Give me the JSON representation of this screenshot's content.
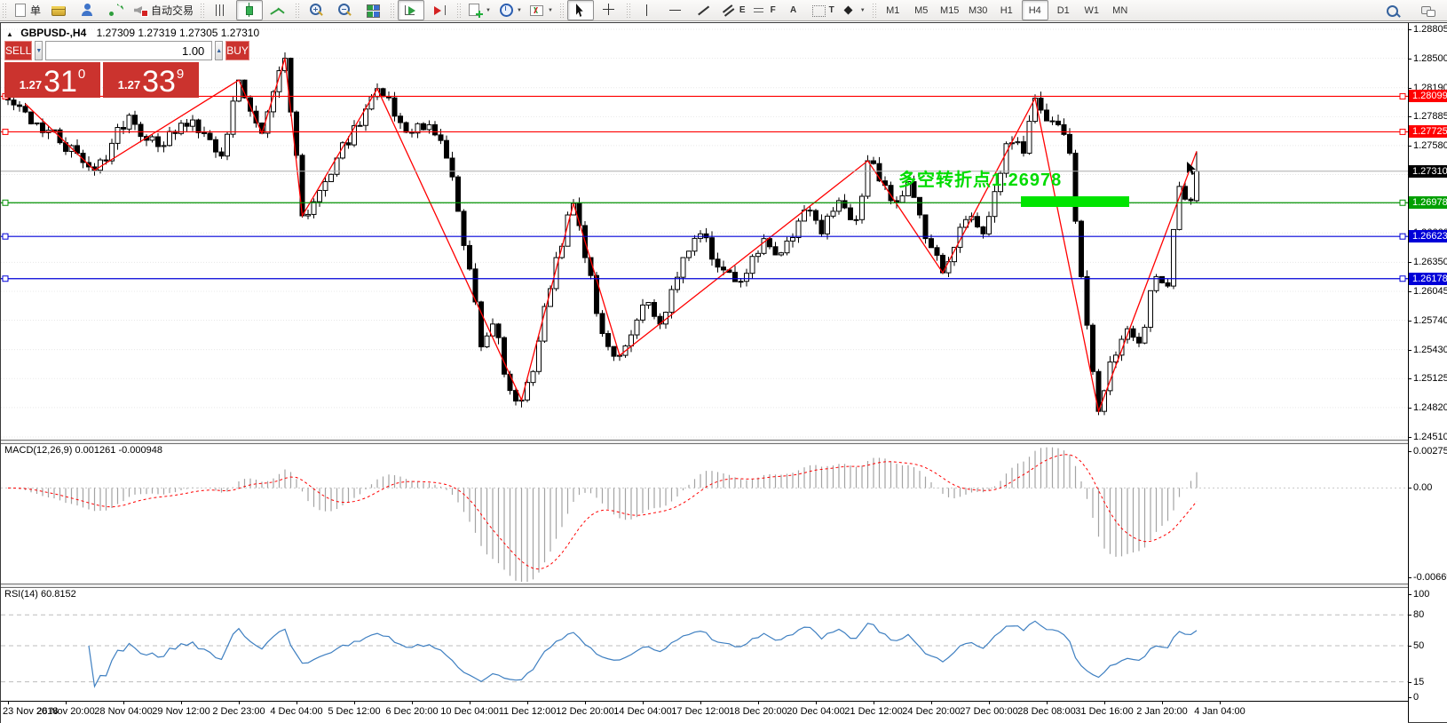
{
  "toolbar": {
    "caret_glyph": "▼",
    "groups": [
      {
        "buttons": [
          {
            "name": "new-order",
            "icon": "new-order",
            "label": "单"
          },
          {
            "name": "accounts-wallet",
            "icon": "wallet"
          },
          {
            "name": "profile",
            "icon": "profile"
          },
          {
            "name": "signals",
            "icon": "signals"
          },
          {
            "name": "autotrading",
            "icon": "autotrade",
            "label": "自动交易"
          }
        ]
      },
      {
        "buttons": [
          {
            "name": "bar-chart-mode",
            "icon": "bars"
          },
          {
            "name": "candlestick-mode",
            "icon": "candle",
            "pressed": true
          },
          {
            "name": "line-chart-mode",
            "icon": "linechart"
          }
        ]
      },
      {
        "buttons": [
          {
            "name": "zoom-in",
            "icon": "zoom-in"
          },
          {
            "name": "zoom-out",
            "icon": "zoom-out"
          },
          {
            "name": "tile-windows",
            "icon": "tile"
          }
        ]
      },
      {
        "buttons": [
          {
            "name": "auto-scroll",
            "icon": "autoscroll",
            "pressed": true
          },
          {
            "name": "chart-shift",
            "icon": "shift"
          }
        ]
      },
      {
        "buttons": [
          {
            "name": "new-chart",
            "icon": "newchart",
            "caret": true
          },
          {
            "name": "chart-periods",
            "icon": "clock",
            "caret": true
          },
          {
            "name": "indicators-list",
            "icon": "indicators",
            "caret": true
          }
        ]
      },
      {
        "buttons": [
          {
            "name": "cursor-tool",
            "icon": "cursor",
            "pressed": true
          },
          {
            "name": "crosshair-tool",
            "icon": "crosshair"
          }
        ]
      },
      {
        "buttons": [
          {
            "name": "vertical-line-tool",
            "icon": "vline"
          },
          {
            "name": "horizontal-line-tool",
            "icon": "hline"
          },
          {
            "name": "trendline-tool",
            "icon": "trend"
          },
          {
            "name": "equidistant-channel-tool",
            "icon": "channel",
            "glyph": "E"
          },
          {
            "name": "fibonacci-tool",
            "icon": "fibo",
            "glyph": "F"
          },
          {
            "name": "text-tool",
            "icon": "",
            "glyph": "A"
          },
          {
            "name": "text-label-tool",
            "icon": "label",
            "glyph": "T"
          },
          {
            "name": "arrows-tool",
            "icon": "arrows",
            "caret": true
          }
        ]
      },
      {
        "timeframes": true,
        "buttons": [
          {
            "name": "tf-m1",
            "label": "M1"
          },
          {
            "name": "tf-m5",
            "label": "M5"
          },
          {
            "name": "tf-m15",
            "label": "M15"
          },
          {
            "name": "tf-m30",
            "label": "M30"
          },
          {
            "name": "tf-h1",
            "label": "H1"
          },
          {
            "name": "tf-h4",
            "label": "H4",
            "pressed": true
          },
          {
            "name": "tf-d1",
            "label": "D1"
          },
          {
            "name": "tf-w1",
            "label": "W1"
          },
          {
            "name": "tf-mn",
            "label": "MN"
          }
        ]
      }
    ],
    "right_buttons": [
      {
        "name": "search",
        "icon": "search"
      },
      {
        "name": "chat",
        "icon": "chat"
      }
    ]
  },
  "chart": {
    "collapse_glyph": "▲",
    "symbol_title": "GBPUSD-,H4",
    "quotes": "1.27309 1.27319 1.27305 1.27310"
  },
  "trade_panel": {
    "sell_label": "SELL",
    "buy_label": "BUY",
    "volume": "1.00",
    "spin_down_glyph": "▼",
    "spin_up_glyph": "▲",
    "sell_price_small": "1.27",
    "sell_price_big": "31",
    "sell_price_sup": "0",
    "buy_price_small": "1.27",
    "buy_price_big": "33",
    "buy_price_sup": "9",
    "panel_color": "#cb332e"
  },
  "annotation": {
    "text": "多空转折点1.26978",
    "color": "#00DC00",
    "rect_color": "#00E400"
  },
  "indicators": {
    "macd": {
      "label": "MACD(12,26,9)",
      "value": "0.001261",
      "signal_value": "-0.000948",
      "axis": [
        {
          "label": "0.002753",
          "v": 0.002753
        },
        {
          "label": "0.00",
          "v": 0
        },
        {
          "label": "-0.006699",
          "v": -0.006699
        }
      ],
      "histogram_color": "#A3A3A3",
      "signal_color": "#FF0000"
    },
    "rsi": {
      "label": "RSI(14)",
      "value": "60.8152",
      "axis": [
        {
          "label": "100",
          "v": 100
        },
        {
          "label": "80",
          "v": 80,
          "dashed": true
        },
        {
          "label": "50",
          "v": 50,
          "dashed": true
        },
        {
          "label": "15",
          "v": 15,
          "dashed": true
        },
        {
          "label": "0",
          "v": 0
        }
      ],
      "line_color": "#3E7FC1"
    }
  },
  "chart_data": {
    "type": "candlestick",
    "symbol": "GBPUSD-",
    "timeframe": "H4",
    "current_price": {
      "value": 1.2731,
      "label": "1.27310",
      "badge_color": "#000000",
      "line_color": "#ADADAD"
    },
    "price_axis": {
      "ticks": [
        "1.28805",
        "1.28500",
        "1.28190",
        "1.27885",
        "1.27580",
        "1.27275",
        "1.26970",
        "1.26660",
        "1.26350",
        "1.26045",
        "1.25740",
        "1.25430",
        "1.25125",
        "1.24820",
        "1.24510"
      ],
      "top": 1.28805,
      "bottom": 1.2451
    },
    "time_axis": {
      "labels": [
        "23 Nov 2018",
        "26 Nov 20:00",
        "28 Nov 04:00",
        "29 Nov 12:00",
        "2 Dec 23:00",
        "4 Dec 04:00",
        "5 Dec 12:00",
        "6 Dec 20:00",
        "10 Dec 04:00",
        "11 Dec 12:00",
        "12 Dec 20:00",
        "14 Dec 04:00",
        "17 Dec 12:00",
        "18 Dec 20:00",
        "20 Dec 04:00",
        "21 Dec 12:00",
        "24 Dec 20:00",
        "27 Dec 00:00",
        "28 Dec 08:00",
        "31 Dec 16:00",
        "2 Jan 20:00",
        "4 Jan 04:00"
      ]
    },
    "levels": [
      {
        "price": 1.28099,
        "label": "1.28099",
        "color": "#FF0000"
      },
      {
        "price": 1.27725,
        "label": "1.27725",
        "color": "#FF0000"
      },
      {
        "price": 1.26978,
        "label": "1.26978",
        "color": "#009000",
        "badge_color": "#00A000"
      },
      {
        "price": 1.26623,
        "label": "1.26623",
        "color": "#0000D8"
      },
      {
        "price": 1.26178,
        "label": "1.26178",
        "color": "#0000D8"
      }
    ],
    "zigzag_color": "#FF0000",
    "bar_count": 207,
    "price_path": [
      [
        0,
        1.2806
      ],
      [
        15,
        1.2732
      ],
      [
        21,
        1.279
      ],
      [
        26,
        1.2757
      ],
      [
        32,
        1.2785
      ],
      [
        37,
        1.2747
      ],
      [
        40,
        1.2827
      ],
      [
        44,
        1.2771
      ],
      [
        48,
        1.285
      ],
      [
        51,
        1.2684
      ],
      [
        55,
        1.272
      ],
      [
        64,
        1.2818
      ],
      [
        69,
        1.2772
      ],
      [
        73,
        1.278
      ],
      [
        77,
        1.2725
      ],
      [
        80,
        1.2628
      ],
      [
        82,
        1.2546
      ],
      [
        84,
        1.257
      ],
      [
        87,
        1.25
      ],
      [
        89,
        1.249
      ],
      [
        91,
        1.252
      ],
      [
        95,
        1.264
      ],
      [
        98,
        1.2697
      ],
      [
        100,
        1.264
      ],
      [
        103,
        1.256
      ],
      [
        106,
        1.2537
      ],
      [
        110,
        1.259
      ],
      [
        113,
        1.257
      ],
      [
        117,
        1.264
      ],
      [
        120,
        1.2665
      ],
      [
        123,
        1.263
      ],
      [
        127,
        1.2615
      ],
      [
        131,
        1.266
      ],
      [
        134,
        1.2645
      ],
      [
        138,
        1.269
      ],
      [
        141,
        1.2665
      ],
      [
        144,
        1.27
      ],
      [
        147,
        1.268
      ],
      [
        149,
        1.2742
      ],
      [
        153,
        1.27
      ],
      [
        156,
        1.272
      ],
      [
        159,
        1.266
      ],
      [
        162,
        1.2624
      ],
      [
        166,
        1.268
      ],
      [
        169,
        1.2665
      ],
      [
        173,
        1.276
      ],
      [
        176,
        1.275
      ],
      [
        178,
        1.2808
      ],
      [
        182,
        1.278
      ],
      [
        184,
        1.275
      ],
      [
        186,
        1.262
      ],
      [
        188,
        1.252
      ],
      [
        189,
        1.2478
      ],
      [
        191,
        1.253
      ],
      [
        194,
        1.2565
      ],
      [
        196,
        1.255
      ],
      [
        199,
        1.262
      ],
      [
        201,
        1.261
      ],
      [
        203,
        1.2715
      ],
      [
        205,
        1.27
      ],
      [
        206,
        1.2731
      ]
    ],
    "zigzag": [
      [
        3,
        1.2802
      ],
      [
        15,
        1.2732
      ],
      [
        40,
        1.2827
      ],
      [
        44,
        1.2771
      ],
      [
        48,
        1.285
      ],
      [
        51,
        1.2684
      ],
      [
        64,
        1.2818
      ],
      [
        89,
        1.249
      ],
      [
        98,
        1.2697
      ],
      [
        106,
        1.2537
      ],
      [
        149,
        1.2742
      ],
      [
        162,
        1.2624
      ],
      [
        178,
        1.2808
      ],
      [
        189,
        1.2478
      ],
      [
        206,
        1.2752
      ]
    ],
    "wick_overrides": {
      "48": [
        1.2852,
        null
      ],
      "89": [
        null,
        1.2483
      ],
      "178": [
        1.2812,
        null
      ],
      "189": [
        null,
        1.2474
      ],
      "206": [
        1.2752,
        null
      ]
    },
    "macd_params": [
      12,
      26,
      9
    ],
    "rsi_period": 14
  }
}
